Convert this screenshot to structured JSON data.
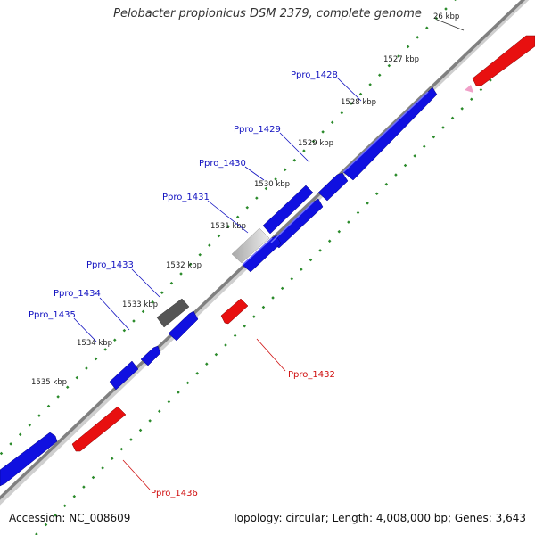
{
  "title": "Pelobacter propionicus DSM 2379, complete genome",
  "accession": "Accession: NC_008609",
  "topology": "Topology: circular; Length: 4,008,000 bp; Genes: 3,643",
  "colors": {
    "forward_gene": "#1010e0",
    "reverse_gene": "#e81010",
    "backbone": "#808080",
    "tick": "#2a8a2a",
    "dark_gene": "#555555",
    "light_gene": "#c8c8c8",
    "pink_marker": "#f0a0c8"
  },
  "ticks": [
    "26 kbp",
    "1527 kbp",
    "1528 kbp",
    "1529 kbp",
    "1530 kbp",
    "1531 kbp",
    "1532 kbp",
    "1533 kbp",
    "1534 kbp",
    "1535 kbp"
  ],
  "genes": [
    {
      "id": "Ppro_1428",
      "strand": "forward"
    },
    {
      "id": "Ppro_1429",
      "strand": "forward"
    },
    {
      "id": "Ppro_1430",
      "strand": "forward"
    },
    {
      "id": "Ppro_1431",
      "strand": "forward"
    },
    {
      "id": "Ppro_1432",
      "strand": "reverse"
    },
    {
      "id": "Ppro_1433",
      "strand": "forward"
    },
    {
      "id": "Ppro_1434",
      "strand": "forward"
    },
    {
      "id": "Ppro_1435",
      "strand": "forward"
    },
    {
      "id": "Ppro_1436",
      "strand": "reverse"
    }
  ]
}
